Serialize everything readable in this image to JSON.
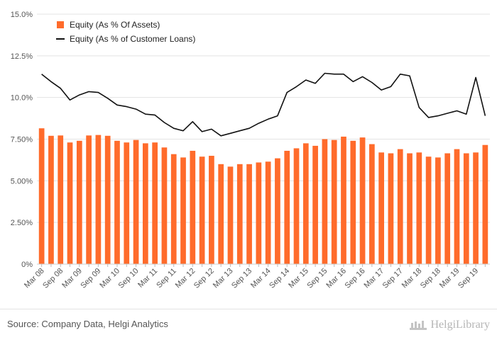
{
  "chart_data": {
    "type": "bar",
    "title": "",
    "xlabel": "",
    "ylabel": "",
    "ylim": [
      0,
      15
    ],
    "y_ticks": [
      "0%",
      "2.50%",
      "5.00%",
      "7.50%",
      "10.0%",
      "12.5%",
      "15.0%"
    ],
    "y_tick_values": [
      0,
      2.5,
      5,
      7.5,
      10,
      12.5,
      15
    ],
    "grid": "horizontal",
    "legend_position": "top-left",
    "x_tick_labels": [
      "Mar 08",
      "Sep 08",
      "Mar 09",
      "Sep 09",
      "Mar 10",
      "Sep 10",
      "Mar 11",
      "Sep 11",
      "Mar 12",
      "Sep 12",
      "Mar 13",
      "Sep 13",
      "Mar 14",
      "Sep 14",
      "Mar 15",
      "Sep 15",
      "Mar 16",
      "Sep 16",
      "Mar 17",
      "Sep 17",
      "Mar 18",
      "Sep 18",
      "Mar 19",
      "Sep 19"
    ],
    "categories": [
      "Mar 08",
      "Jun 08",
      "Sep 08",
      "Dec 08",
      "Mar 09",
      "Jun 09",
      "Sep 09",
      "Dec 09",
      "Mar 10",
      "Jun 10",
      "Sep 10",
      "Dec 10",
      "Mar 11",
      "Jun 11",
      "Sep 11",
      "Dec 11",
      "Mar 12",
      "Jun 12",
      "Sep 12",
      "Dec 12",
      "Mar 13",
      "Jun 13",
      "Sep 13",
      "Dec 13",
      "Mar 14",
      "Jun 14",
      "Sep 14",
      "Dec 14",
      "Mar 15",
      "Jun 15",
      "Sep 15",
      "Dec 15",
      "Mar 16",
      "Jun 16",
      "Sep 16",
      "Dec 16",
      "Mar 17",
      "Jun 17",
      "Sep 17",
      "Dec 17",
      "Mar 18",
      "Jun 18",
      "Sep 18",
      "Dec 18",
      "Mar 19",
      "Jun 19",
      "Sep 19",
      "Dec 19"
    ],
    "series": [
      {
        "name": "Equity (As % Of Assets)",
        "type": "bar",
        "color": "#ff6b2b",
        "values": [
          8.15,
          7.7,
          7.72,
          7.3,
          7.4,
          7.72,
          7.75,
          7.7,
          7.4,
          7.3,
          7.45,
          7.25,
          7.3,
          7.0,
          6.6,
          6.4,
          6.8,
          6.45,
          6.5,
          6.0,
          5.85,
          6.0,
          6.0,
          6.1,
          6.15,
          6.35,
          6.8,
          6.95,
          7.25,
          7.1,
          7.5,
          7.45,
          7.65,
          7.4,
          7.6,
          7.2,
          6.7,
          6.65,
          6.9,
          6.65,
          6.7,
          6.45,
          6.4,
          6.65,
          6.9,
          6.65,
          6.7,
          7.15
        ]
      },
      {
        "name": "Equity (As % of Customer Loans)",
        "type": "line",
        "color": "#111111",
        "values": [
          11.4,
          10.95,
          10.55,
          9.85,
          10.15,
          10.35,
          10.3,
          9.95,
          9.55,
          9.45,
          9.3,
          9.0,
          8.95,
          8.5,
          8.15,
          8.0,
          8.55,
          7.95,
          8.1,
          7.7,
          7.85,
          8.0,
          8.15,
          8.45,
          8.7,
          8.9,
          10.3,
          10.65,
          11.05,
          10.85,
          11.45,
          11.4,
          11.4,
          10.95,
          11.25,
          10.9,
          10.45,
          10.65,
          11.4,
          11.3,
          9.4,
          8.8,
          8.9,
          9.05,
          9.2,
          9.0,
          11.2,
          8.9
        ]
      }
    ]
  },
  "footer": {
    "source": "Source: Company Data, Helgi Analytics",
    "brand": "HelgiLibrary"
  },
  "colors": {
    "bar": "#ff6b2b",
    "line": "#111111",
    "grid": "#e3e3e3",
    "axis_text": "#555555"
  }
}
